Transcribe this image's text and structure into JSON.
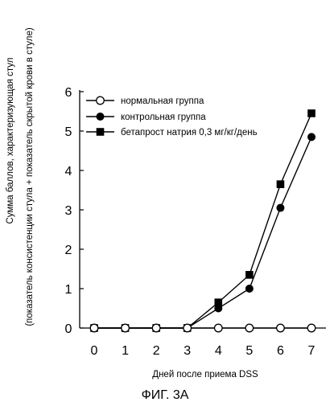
{
  "figure_caption": "ФИГ. 3А",
  "chart_data": {
    "type": "line",
    "title": "",
    "xlabel": "Дней после приема DSS",
    "ylabel_line1": "Сумма баллов, характеризующая стул",
    "ylabel_line2": "(показатель консистенции стула + показатель скрытой крови в стуле)",
    "x": [
      0,
      1,
      2,
      3,
      4,
      5,
      6,
      7
    ],
    "xticks": [
      "0",
      "1",
      "2",
      "3",
      "4",
      "5",
      "6",
      "7"
    ],
    "yticks": [
      "0",
      "1",
      "2",
      "3",
      "4",
      "5",
      "6"
    ],
    "xlim": [
      0,
      7
    ],
    "ylim": [
      0,
      6
    ],
    "grid": false,
    "legend_position": "top-left",
    "series": [
      {
        "name": "нормальная группа",
        "marker": "open-circle",
        "values": [
          0,
          0,
          0,
          0,
          0,
          0,
          0,
          0
        ]
      },
      {
        "name": "контрольная группа",
        "marker": "filled-circle",
        "values": [
          0,
          0,
          0,
          0,
          0.5,
          1.0,
          3.05,
          4.85
        ]
      },
      {
        "name": "бетапрост натрия 0,3 мг/кг/день",
        "marker": "filled-square",
        "values": [
          0,
          0,
          0,
          0,
          0.65,
          1.35,
          3.65,
          5.45
        ]
      }
    ]
  }
}
